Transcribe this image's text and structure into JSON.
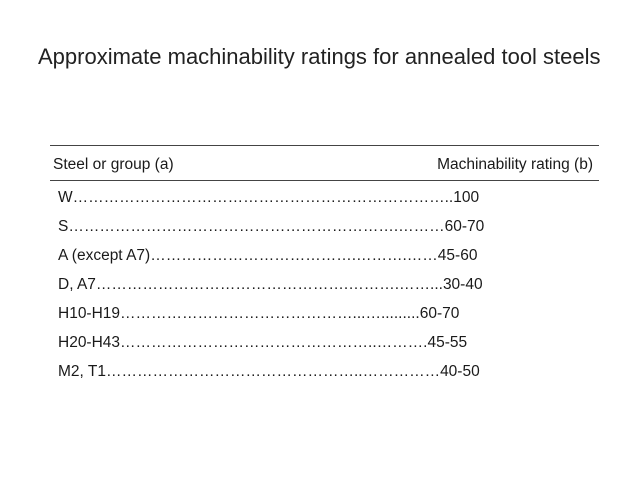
{
  "title": "Approximate machinability ratings for annealed tool steels",
  "table": {
    "headers": {
      "steel": "Steel or group (a)",
      "rating": "Machinability rating (b)"
    },
    "rows": [
      {
        "text": "W………………………………………………………………..100"
      },
      {
        "text": "S……………………………………………………….………60-70"
      },
      {
        "text": "A (except A7)………………………………….……….……45-60"
      },
      {
        "text": "D, A7………………………………………….……….……...30-40"
      },
      {
        "text": "H10-H19………………………………………...….........60-70"
      },
      {
        "text": "H20-H43…………………………………………..……….45-55"
      },
      {
        "text": "M2, T1…………………………………………..……………40-50"
      }
    ]
  }
}
